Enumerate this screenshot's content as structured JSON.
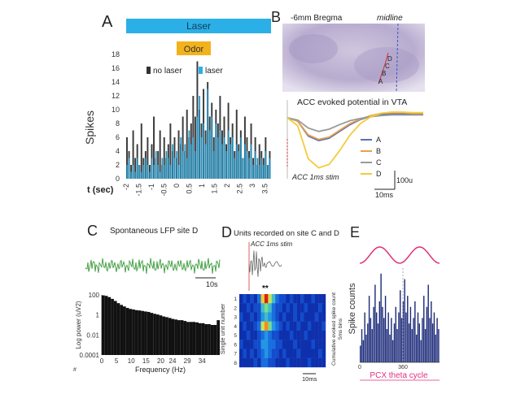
{
  "panels": {
    "A": {
      "letter": "A",
      "laser_bar_label": "Laser",
      "odor_bar_label": "Odor",
      "legend": [
        "no laser",
        "laser"
      ],
      "ylabel": "Spikes",
      "xlabel": "t (sec)",
      "colors": {
        "laser_bar": "#2ab0e6",
        "odor_bar": "#f2b21c",
        "no_laser": "#333333",
        "laser": "#1d8fc0"
      }
    },
    "B": {
      "letter": "B",
      "bregma_label": "-6mm Bregma",
      "midline_label": "midline",
      "site_labels": [
        "A",
        "B",
        "C",
        "D"
      ],
      "evoked_title": "ACC evoked potential in VTA",
      "stim_label": "ACC 1ms stim",
      "scale_time": "10ms",
      "scale_volt": "100u",
      "legend": [
        "A",
        "B",
        "C",
        "D"
      ],
      "colors": {
        "A": "#5b6fb8",
        "B": "#e8a24a",
        "C": "#9a9a9a",
        "D": "#f2cc3a"
      }
    },
    "C": {
      "letter": "C",
      "title": "Spontaneous LFP site D",
      "scale_label": "10s",
      "ylabel": "Log power (uV2)",
      "xlabel": "Frequency (Hz)",
      "corner_mark": "#",
      "colors": {
        "lfp": "#3a9a3a",
        "bars": "#111111"
      }
    },
    "D": {
      "letter": "D",
      "title": "Units recorded on site C and D",
      "stim_label": "ACC 1ms stim",
      "stars": "**",
      "ylabel": "Single unit number",
      "colorbar_label": "Cumulative evoked spike count",
      "colorbar_sublabel": "5ms bins",
      "scale_label": "10ms",
      "yticks": [
        "1",
        "2",
        "3",
        "4",
        "5",
        "6",
        "7",
        "8"
      ]
    },
    "E": {
      "letter": "E",
      "ylabel": "Spike counts",
      "xlabel": "PCX theta cycle",
      "xticks": [
        "0",
        "360"
      ],
      "colors": {
        "bars": "#1c2a7a",
        "theta": "#e0307a",
        "xlabel": "#e0307a"
      }
    }
  },
  "chart_data": [
    {
      "panel": "A",
      "type": "bar",
      "xlabel": "t (sec)",
      "ylabel": "Spikes",
      "ylim": [
        0,
        18
      ],
      "yticks": [
        0,
        2,
        4,
        6,
        8,
        10,
        12,
        14,
        16,
        18
      ],
      "xlim": [
        -2,
        3.75
      ],
      "xticks": [
        "-2",
        "-1.5",
        "-1",
        "-0.5",
        "0",
        "0.5",
        "1",
        "1.5",
        "2",
        "2.5",
        "3",
        "3.5"
      ],
      "laser_interval": [
        -1.8,
        3.6
      ],
      "odor_interval": [
        0,
        1.3
      ],
      "series": [
        {
          "name": "no laser",
          "values": [
            6,
            4,
            2,
            7,
            3,
            5,
            2,
            8,
            3,
            4,
            6,
            2,
            5,
            9,
            3,
            4,
            7,
            2,
            6,
            3,
            5,
            8,
            4,
            6,
            3,
            7,
            5,
            9,
            4,
            10,
            6,
            8,
            12,
            9,
            17,
            10,
            8,
            13,
            7,
            14,
            9,
            11,
            6,
            10,
            8,
            12,
            7,
            9,
            5,
            11,
            6,
            8,
            4,
            10,
            5,
            7,
            3,
            9,
            6,
            4,
            8,
            3,
            6,
            2,
            5,
            4,
            3,
            6,
            2,
            4
          ]
        },
        {
          "name": "laser",
          "values": [
            2,
            3,
            1,
            2,
            1,
            3,
            2,
            1,
            2,
            3,
            2,
            1,
            3,
            2,
            4,
            2,
            1,
            3,
            2,
            4,
            3,
            2,
            5,
            3,
            4,
            2,
            6,
            4,
            5,
            3,
            7,
            5,
            6,
            4,
            9,
            12,
            6,
            8,
            5,
            13,
            7,
            9,
            4,
            8,
            6,
            7,
            5,
            6,
            4,
            7,
            5,
            6,
            3,
            5,
            4,
            6,
            3,
            5,
            4,
            3,
            5,
            2,
            4,
            3,
            2,
            3,
            2,
            4,
            2,
            3
          ]
        }
      ]
    },
    {
      "panel": "B",
      "type": "line",
      "title": "ACC evoked potential in VTA",
      "series": [
        {
          "name": "A",
          "values": [
            0,
            -6,
            -32,
            -40,
            -36,
            -24,
            -12,
            -3,
            3,
            6,
            7,
            7,
            6,
            6
          ]
        },
        {
          "name": "B",
          "values": [
            0,
            -6,
            -30,
            -38,
            -34,
            -22,
            -10,
            -2,
            4,
            8,
            9,
            9,
            8,
            8
          ]
        },
        {
          "name": "C",
          "values": [
            0,
            -4,
            -18,
            -24,
            -20,
            -12,
            -5,
            -1,
            2,
            4,
            5,
            5,
            5,
            5
          ]
        },
        {
          "name": "D",
          "values": [
            0,
            -14,
            -72,
            -88,
            -82,
            -58,
            -30,
            -10,
            2,
            8,
            10,
            10,
            9,
            9
          ]
        }
      ]
    },
    {
      "panel": "C",
      "type": "bar",
      "xlabel": "Frequency (Hz)",
      "ylabel": "Log power (uV2)",
      "yscale": "log",
      "ylim": [
        0.0001,
        100
      ],
      "yticks": [
        "100",
        "1",
        "0.01",
        "0.0001"
      ],
      "xlim": [
        0,
        40
      ],
      "xticks": [
        "0",
        "5",
        "10",
        "15",
        "20",
        "24",
        "29",
        "34"
      ],
      "values": [
        90,
        80,
        60,
        40,
        25,
        15,
        10,
        7,
        5,
        4,
        3.5,
        3,
        2.8,
        2.5,
        2.2,
        2,
        1.6,
        1.3,
        1.1,
        0.9,
        0.7,
        0.6,
        0.5,
        0.4,
        0.35,
        0.3,
        0.3,
        0.25,
        0.2,
        0.2,
        0.2,
        0.18,
        0.15,
        0.15,
        0.12,
        0.12,
        0.1,
        0.1,
        0.3
      ]
    },
    {
      "panel": "D",
      "type": "heatmap",
      "ylabel": "Single unit number",
      "rows": 8,
      "cols": 24,
      "values": [
        [
          1,
          2,
          1,
          2,
          1,
          3,
          8,
          10,
          7,
          5,
          3,
          2,
          2,
          1,
          2,
          1,
          1,
          2,
          1,
          1,
          2,
          1,
          1,
          1
        ],
        [
          1,
          1,
          2,
          1,
          2,
          2,
          5,
          6,
          5,
          3,
          2,
          2,
          1,
          2,
          1,
          2,
          1,
          1,
          2,
          1,
          1,
          1,
          2,
          1
        ],
        [
          2,
          1,
          1,
          2,
          1,
          2,
          4,
          5,
          4,
          3,
          2,
          1,
          2,
          1,
          1,
          2,
          1,
          2,
          1,
          1,
          1,
          2,
          1,
          1
        ],
        [
          1,
          2,
          1,
          1,
          2,
          3,
          7,
          9,
          6,
          4,
          3,
          2,
          1,
          2,
          1,
          1,
          2,
          1,
          1,
          2,
          1,
          1,
          1,
          2
        ],
        [
          1,
          1,
          2,
          1,
          1,
          2,
          3,
          4,
          3,
          2,
          2,
          1,
          1,
          1,
          2,
          1,
          1,
          1,
          2,
          1,
          1,
          1,
          1,
          1
        ],
        [
          2,
          1,
          1,
          1,
          2,
          2,
          4,
          4,
          3,
          3,
          2,
          2,
          1,
          1,
          1,
          2,
          1,
          1,
          1,
          1,
          2,
          1,
          1,
          1
        ],
        [
          1,
          2,
          1,
          2,
          1,
          2,
          3,
          4,
          3,
          2,
          2,
          1,
          2,
          1,
          1,
          1,
          2,
          1,
          1,
          1,
          1,
          1,
          2,
          1
        ],
        [
          1,
          1,
          1,
          1,
          2,
          1,
          3,
          3,
          2,
          2,
          1,
          1,
          1,
          2,
          1,
          1,
          1,
          1,
          1,
          2,
          1,
          1,
          1,
          1
        ]
      ]
    },
    {
      "panel": "E",
      "type": "bar",
      "xlabel": "PCX theta cycle",
      "ylabel": "Spike counts",
      "xticks": [
        "0",
        "360"
      ],
      "values": [
        3,
        6,
        4,
        9,
        5,
        7,
        12,
        8,
        6,
        10,
        14,
        9,
        7,
        11,
        16,
        10,
        8,
        12,
        6,
        9,
        5,
        8,
        4,
        7,
        10,
        6,
        9,
        13,
        8,
        11,
        15,
        9,
        12,
        7,
        10,
        6,
        8,
        11,
        5,
        9,
        7,
        4,
        8,
        12,
        6,
        10,
        14,
        8,
        11,
        7,
        9,
        5,
        8,
        6
      ]
    }
  ]
}
